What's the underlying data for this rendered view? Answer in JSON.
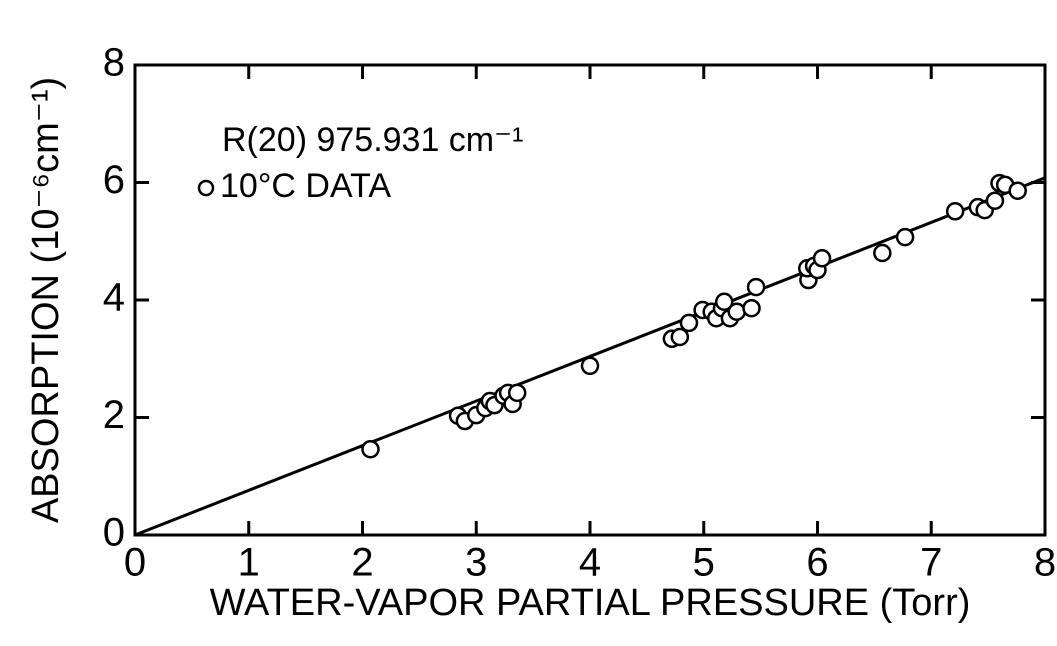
{
  "chart_data": {
    "type": "scatter",
    "xlabel": "WATER-VAPOR PARTIAL PRESSURE (Torr)",
    "ylabel": "ABSORPTION (10⁻⁶cm⁻¹)",
    "annotation": "R(20) 975.931 cm⁻¹",
    "xlim": [
      0,
      8
    ],
    "ylim": [
      0,
      8
    ],
    "xticks": [
      0,
      1,
      2,
      3,
      4,
      5,
      6,
      7,
      8
    ],
    "yticks": [
      0,
      2,
      4,
      6,
      8
    ],
    "legend": "upper left",
    "series": [
      {
        "name": "10°C DATA",
        "color": "#000000",
        "x": [
          2.07,
          2.84,
          2.9,
          3.0,
          3.08,
          3.12,
          3.16,
          3.24,
          3.28,
          3.32,
          3.36,
          4.0,
          4.72,
          4.79,
          4.87,
          4.99,
          5.07,
          5.11,
          5.16,
          5.18,
          5.23,
          5.29,
          5.42,
          5.46,
          5.92,
          5.91,
          5.97,
          6.0,
          6.04,
          6.57,
          6.77,
          7.21,
          7.41,
          7.47,
          7.56,
          7.6,
          7.65,
          7.76
        ],
        "values": [
          1.46,
          2.03,
          1.94,
          2.04,
          2.16,
          2.28,
          2.21,
          2.37,
          2.42,
          2.23,
          2.42,
          2.88,
          3.34,
          3.37,
          3.61,
          3.83,
          3.8,
          3.69,
          3.86,
          3.97,
          3.69,
          3.8,
          3.86,
          4.22,
          4.34,
          4.54,
          4.58,
          4.51,
          4.71,
          4.8,
          5.07,
          5.51,
          5.58,
          5.53,
          5.69,
          5.99,
          5.96,
          5.86
        ]
      }
    ],
    "fit_line": {
      "x": [
        0,
        8
      ],
      "values": [
        0,
        6.08
      ]
    }
  }
}
